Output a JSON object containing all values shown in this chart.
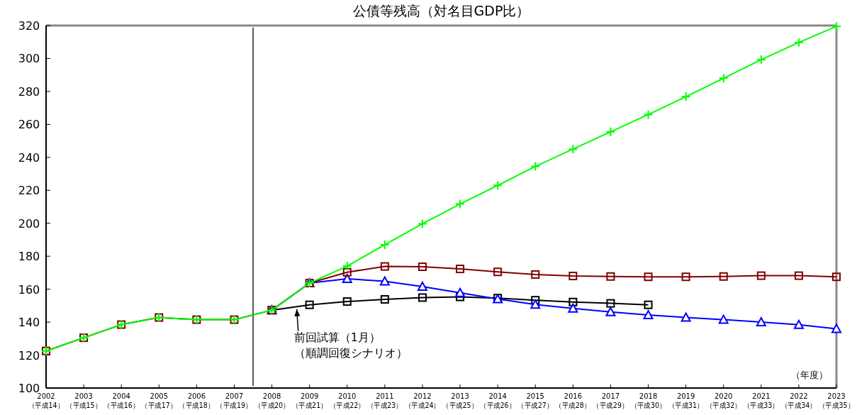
{
  "chart_data": {
    "type": "line",
    "title": "公債等残高（対名目GDP比）",
    "xlabel": "（年度）",
    "categories": [
      "2002\n（平成14）",
      "2003\n（平成15）",
      "2004\n（平成16）",
      "2005\n（平成17）",
      "2006\n（平成18）",
      "2007\n（平成19）",
      "2008\n（平成20）",
      "2009\n（平成21）",
      "2010\n（平成22）",
      "2011\n（平成23）",
      "2012\n（平成24）",
      "2013\n（平成25）",
      "2014\n（平成26）",
      "2015\n（平成27）",
      "2016\n（平成28）",
      "2017\n（平成29）",
      "2018\n（平成30）",
      "2019\n（平成31）",
      "2020\n（平成32）",
      "2021\n（平成33）",
      "2022\n（平成34）",
      "2023\n（平成35）"
    ],
    "series": [
      {
        "color": "#000000",
        "marker": "square",
        "values": [
          null,
          null,
          null,
          null,
          null,
          null,
          147.3,
          150.5,
          152.5,
          153.8,
          154.9,
          155.3,
          154.6,
          153.3,
          152.2,
          151.4,
          150.5,
          null,
          null,
          null,
          null,
          null
        ]
      },
      {
        "color": "#0000ff",
        "marker": "triangle",
        "values": [
          null,
          null,
          null,
          null,
          null,
          null,
          147.3,
          163.7,
          166.3,
          164.8,
          161.6,
          157.8,
          154,
          150.7,
          148.3,
          146.2,
          144.3,
          142.8,
          141.5,
          140,
          138.4,
          136
        ]
      },
      {
        "color": "#800000",
        "marker": "square",
        "values": [
          122.5,
          130.5,
          138.5,
          142.8,
          141.5,
          141.5,
          147.3,
          163.7,
          170.3,
          173.8,
          173.6,
          172.3,
          170.5,
          168.9,
          168,
          167.7,
          167.5,
          167.5,
          167.7,
          168.2,
          168.2,
          167.5
        ]
      },
      {
        "color": "#00ff00",
        "marker": "cross",
        "values": [
          122.5,
          130.5,
          138.5,
          142.8,
          141.5,
          141.5,
          147.3,
          163.7,
          174,
          187,
          199.7,
          211.7,
          223,
          234.5,
          245,
          255.5,
          266,
          276.8,
          288,
          299.3,
          309.7,
          319.5
        ]
      }
    ],
    "ylim": [
      100,
      320
    ],
    "yticks": [
      100,
      120,
      140,
      160,
      180,
      200,
      220,
      240,
      260,
      280,
      300,
      320
    ],
    "grid": false,
    "annotations": [
      {
        "text": "前回試算（1月）",
        "x": "2009\n（平成21）",
        "y": 150.5
      },
      "（順調回復シナリオ）"
    ]
  }
}
